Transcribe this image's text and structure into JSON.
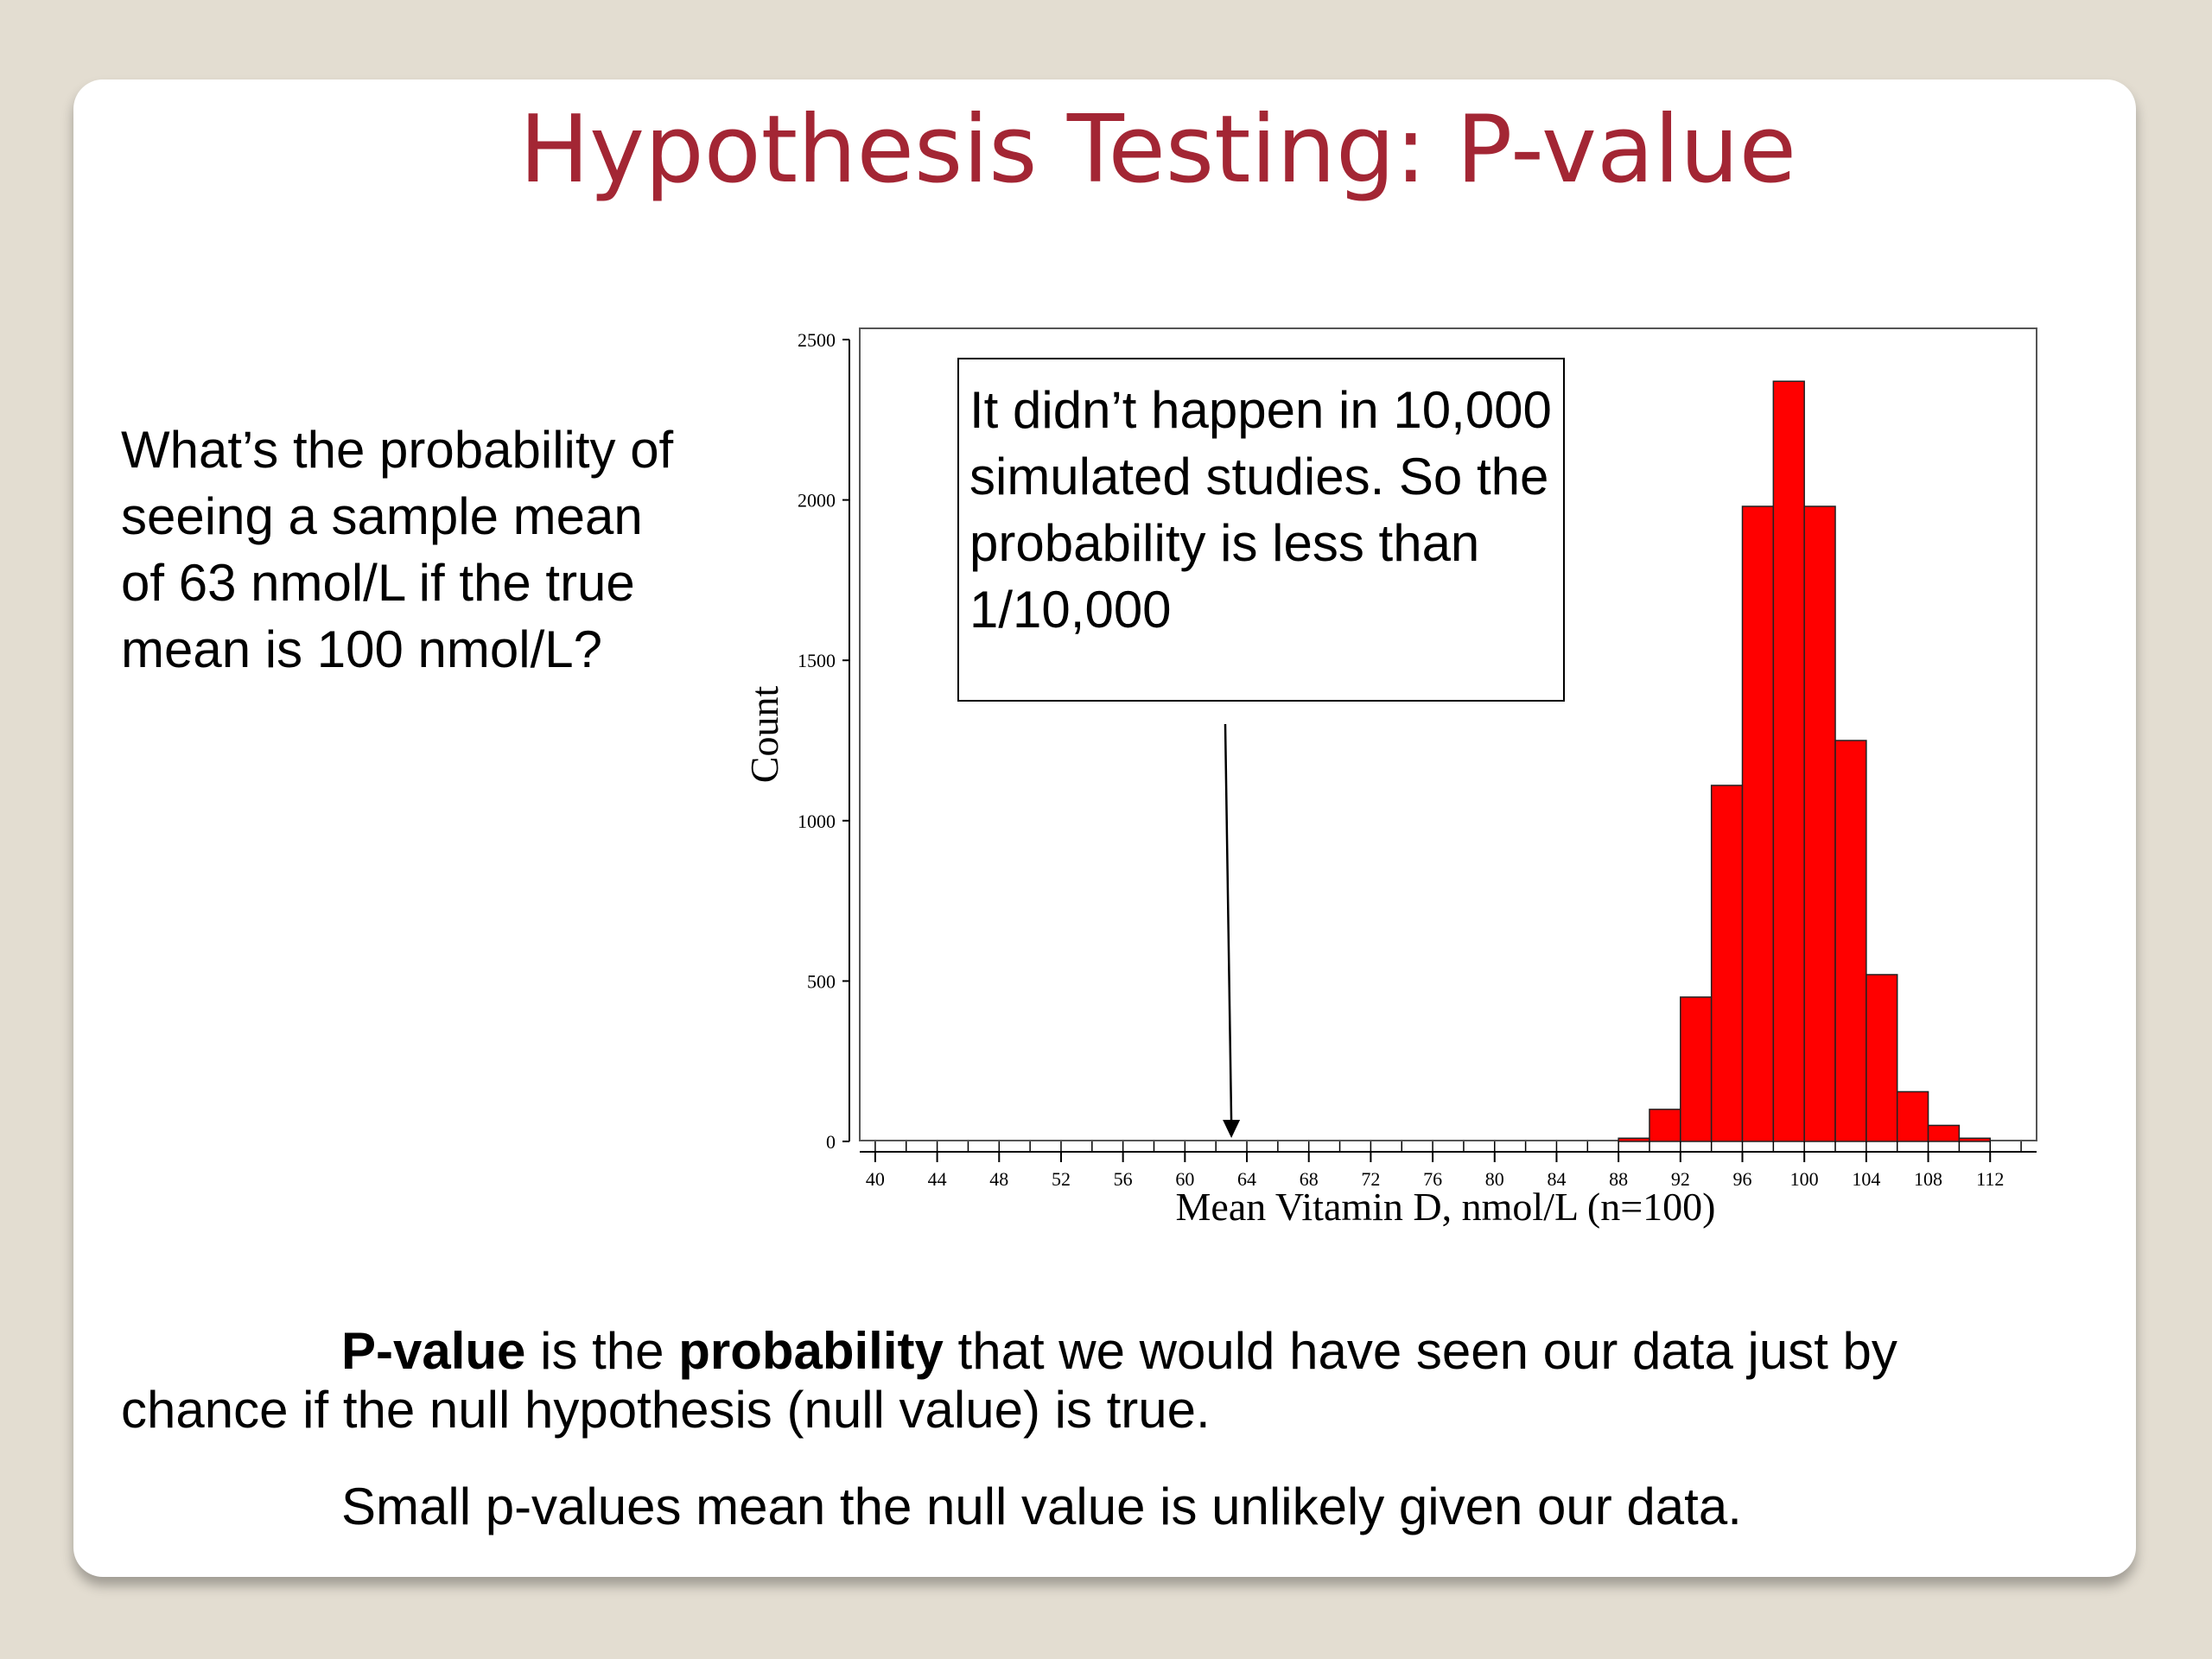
{
  "slide": {
    "title": "Hypothesis Testing: P-value",
    "question": "What’s the probability of seeing a sample mean of 63 nmol/L if the true mean is 100 nmol/L?",
    "definition": {
      "term": "P-value",
      "part1": " is the ",
      "bold2": "probability",
      "part2": " that we would have seen our data just by chance if the null hypothesis (null value) is true."
    },
    "note": "Small p-values mean the null value is unlikely given our data."
  },
  "chart_data": {
    "type": "bar",
    "xlabel": "Mean Vitamin D, nmol/L (n=100)",
    "ylabel": "Count",
    "ylim": [
      0,
      2500
    ],
    "xlim": [
      39,
      115
    ],
    "x_ticks": [
      40,
      44,
      48,
      52,
      56,
      60,
      64,
      68,
      72,
      76,
      80,
      84,
      88,
      92,
      96,
      100,
      104,
      108,
      112
    ],
    "y_ticks": [
      0,
      500,
      1000,
      1500,
      2000,
      2500
    ],
    "bin_width": 2,
    "bins": [
      {
        "start": 88,
        "count": 10
      },
      {
        "start": 90,
        "count": 100
      },
      {
        "start": 92,
        "count": 450
      },
      {
        "start": 94,
        "count": 1110
      },
      {
        "start": 96,
        "count": 1980
      },
      {
        "start": 98,
        "count": 2370
      },
      {
        "start": 100,
        "count": 1980
      },
      {
        "start": 102,
        "count": 1250
      },
      {
        "start": 104,
        "count": 520
      },
      {
        "start": 106,
        "count": 155
      },
      {
        "start": 108,
        "count": 50
      },
      {
        "start": 110,
        "count": 10
      }
    ],
    "bar_color": "#ff0000",
    "annotation": {
      "text": "It didn’t happen in 10,000 simulated studies. So the probability is less than 1/10,000",
      "arrow_to_x": 63
    },
    "grid": false
  }
}
